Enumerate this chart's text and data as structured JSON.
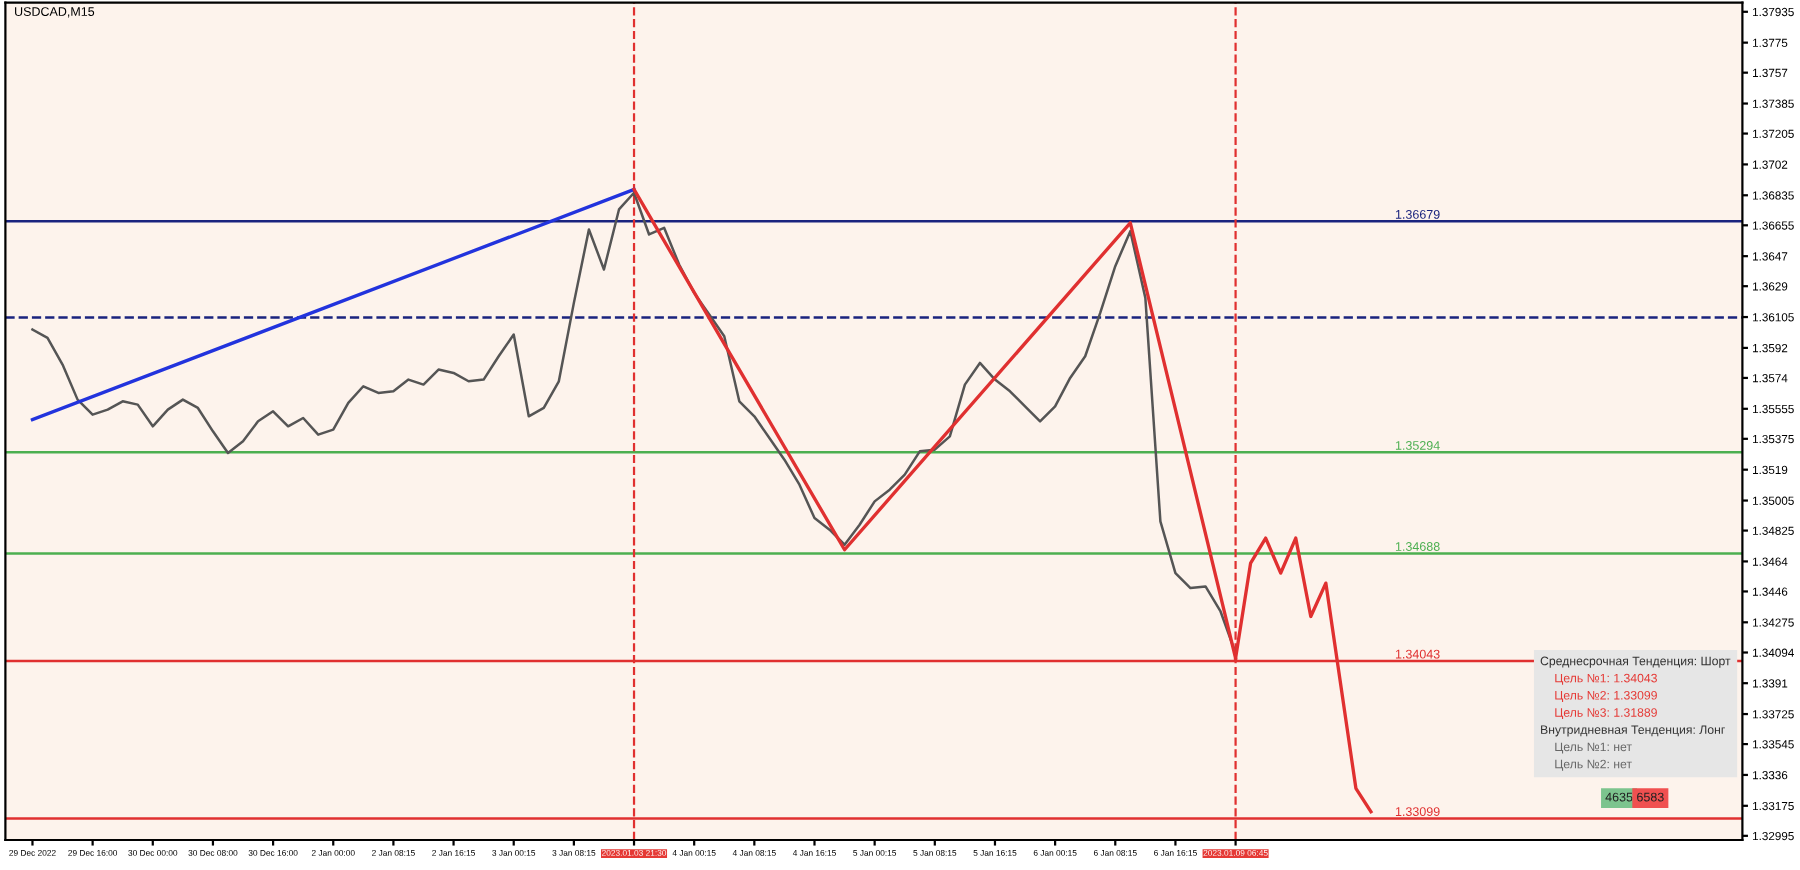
{
  "chart_data": {
    "type": "line",
    "title": "USDCAD,M15",
    "categories": [
      "29 Dec 2022",
      null,
      null,
      null,
      "29 Dec 16:00",
      null,
      null,
      null,
      "30 Dec 00:00",
      null,
      null,
      null,
      "30 Dec 08:00",
      null,
      null,
      null,
      "30 Dec 16:00",
      null,
      null,
      null,
      "2 Jan 00:00",
      null,
      null,
      null,
      "2 Jan 08:15",
      null,
      null,
      null,
      "2 Jan 16:15",
      null,
      null,
      null,
      "3 Jan 00:15",
      null,
      null,
      null,
      "3 Jan 08:15",
      null,
      null,
      null,
      "2023.01.03 21:30",
      null,
      null,
      null,
      "4 Jan 00:15",
      null,
      null,
      null,
      "4 Jan 08:15",
      null,
      null,
      null,
      "4 Jan 16:15",
      null,
      null,
      null,
      "5 Jan 00:15",
      null,
      null,
      null,
      "5 Jan 08:15",
      null,
      null,
      null,
      "5 Jan 16:15",
      null,
      null,
      null,
      "6 Jan 00:15",
      null,
      null,
      null,
      "6 Jan 08:15",
      null,
      null,
      null,
      "6 Jan 16:15",
      null,
      null,
      null,
      "2023.01.09 06:45",
      null,
      null,
      null,
      null,
      null,
      null,
      null,
      null,
      null,
      null,
      null,
      null,
      null,
      null,
      null,
      null,
      null,
      null,
      null,
      null,
      null,
      null,
      null,
      null,
      null,
      null,
      null,
      null,
      null,
      null,
      null,
      null,
      null
    ],
    "series": [
      {
        "color": "#555555",
        "values": [
          1.3603,
          1.3598,
          1.3582,
          1.3561,
          1.3552,
          1.3555,
          1.356,
          1.3558,
          1.3545,
          1.3555,
          1.3561,
          1.3556,
          1.3542,
          1.3529,
          1.3536,
          1.3548,
          1.3554,
          1.3545,
          1.355,
          1.354,
          1.3543,
          1.3559,
          1.3569,
          1.3565,
          1.3566,
          1.3573,
          1.357,
          1.3579,
          1.3577,
          1.3572,
          1.3573,
          1.3587,
          1.36,
          1.3551,
          1.3556,
          1.3572,
          1.3619,
          1.3663,
          1.3639,
          1.3675,
          1.3685,
          1.366,
          1.3664,
          1.3642,
          1.3625,
          1.3612,
          1.3599,
          1.356,
          1.3551,
          1.3538,
          1.3525,
          1.351,
          1.349,
          1.3483,
          1.3474,
          1.3486,
          1.35,
          1.3507,
          1.3516,
          1.353,
          1.3531,
          1.3539,
          1.357,
          1.3583,
          1.3573,
          1.3566,
          1.3557,
          1.3548,
          1.3557,
          1.3574,
          1.3587,
          1.3613,
          1.3641,
          1.3662,
          1.3622,
          1.3488,
          1.3457,
          1.3448,
          1.3449,
          1.3434,
          1.3409,
          null,
          null,
          null,
          null,
          null,
          null,
          null,
          null,
          null,
          null,
          null,
          null,
          null,
          null,
          null,
          null,
          null,
          null,
          null,
          null,
          null,
          null,
          null,
          null,
          null,
          null,
          null,
          null,
          null,
          null,
          null,
          null,
          null
        ]
      },
      {
        "color": "#2233dd",
        "values": [
          1.3549,
          null,
          null,
          null,
          null,
          null,
          null,
          null,
          null,
          null,
          null,
          null,
          null,
          null,
          null,
          null,
          null,
          null,
          null,
          null,
          null,
          null,
          null,
          null,
          null,
          null,
          null,
          null,
          null,
          null,
          null,
          null,
          null,
          null,
          null,
          null,
          null,
          null,
          null,
          null,
          1.3687,
          null,
          null,
          null,
          null,
          null,
          null,
          null,
          null,
          null,
          null,
          null,
          null,
          null,
          null,
          null,
          null,
          null,
          null,
          null,
          null,
          null,
          null,
          null,
          null,
          null,
          null,
          null,
          null,
          null,
          null,
          null,
          null,
          null,
          null,
          null,
          null,
          null,
          null,
          null,
          null,
          null,
          null,
          null,
          null,
          null,
          null,
          null,
          null,
          null,
          null,
          null,
          null,
          null,
          null,
          null,
          null,
          null,
          null,
          null,
          null,
          null,
          null,
          null,
          null,
          null,
          null,
          null,
          null,
          null,
          null,
          null,
          null,
          null
        ]
      },
      {
        "color": "#e03030",
        "values": [
          null,
          null,
          null,
          null,
          null,
          null,
          null,
          null,
          null,
          null,
          null,
          null,
          null,
          null,
          null,
          null,
          null,
          null,
          null,
          null,
          null,
          null,
          null,
          null,
          null,
          null,
          null,
          null,
          null,
          null,
          null,
          null,
          null,
          null,
          null,
          null,
          null,
          null,
          null,
          null,
          1.3687,
          null,
          null,
          null,
          null,
          null,
          null,
          null,
          null,
          null,
          null,
          null,
          null,
          null,
          1.3471,
          null,
          null,
          null,
          null,
          null,
          null,
          null,
          null,
          null,
          null,
          null,
          null,
          null,
          null,
          null,
          null,
          null,
          null,
          1.3667,
          null,
          null,
          null,
          null,
          null,
          null,
          1.3406,
          null,
          null,
          null,
          null,
          null,
          null,
          null,
          null,
          null,
          null,
          null,
          null,
          null,
          null,
          null,
          null,
          null,
          null,
          null,
          null,
          null,
          null,
          null,
          null,
          null,
          null,
          null,
          null,
          null,
          null,
          null,
          null,
          null
        ]
      },
      {
        "color": "#e03030",
        "values": [
          null,
          null,
          null,
          null,
          null,
          null,
          null,
          null,
          null,
          null,
          null,
          null,
          null,
          null,
          null,
          null,
          null,
          null,
          null,
          null,
          null,
          null,
          null,
          null,
          null,
          null,
          null,
          null,
          null,
          null,
          null,
          null,
          null,
          null,
          null,
          null,
          null,
          null,
          null,
          null,
          null,
          null,
          null,
          null,
          null,
          null,
          null,
          null,
          null,
          null,
          null,
          null,
          null,
          null,
          null,
          null,
          null,
          null,
          null,
          null,
          null,
          null,
          null,
          null,
          null,
          null,
          null,
          null,
          null,
          null,
          null,
          null,
          null,
          null,
          null,
          null,
          null,
          null,
          null,
          null,
          1.3406,
          1.3463,
          1.3478,
          1.3457,
          1.3478,
          1.3431,
          1.3451,
          null,
          1.3328,
          1.3314,
          null,
          null,
          null,
          null,
          null,
          null,
          null,
          null,
          null,
          null,
          null,
          null,
          null,
          null,
          null,
          null,
          null,
          null,
          null,
          null,
          null,
          null,
          null,
          null
        ]
      }
    ],
    "ylim": [
      1.3297,
      1.3799
    ],
    "yticks": [
      1.37935,
      1.3775,
      1.3757,
      1.37385,
      1.37205,
      1.3702,
      1.36835,
      1.36655,
      1.3647,
      1.3629,
      1.36105,
      1.3592,
      1.3574,
      1.35555,
      1.35375,
      1.3519,
      1.35005,
      1.34825,
      1.3464,
      1.3446,
      1.34275,
      1.34094,
      1.3391,
      1.33725,
      1.33545,
      1.3336,
      1.33175,
      1.32995
    ],
    "ref_lines": [
      {
        "axis": "y",
        "value": 1.36679,
        "label": "1.36679",
        "color": "#1a237e",
        "line_style": "solid"
      },
      {
        "axis": "y",
        "value": 1.36103,
        "label": null,
        "color": "#1a237e",
        "line_style": "dashed"
      },
      {
        "axis": "y",
        "value": 1.35294,
        "label": "1.35294",
        "color": "#4caf50",
        "line_style": "solid"
      },
      {
        "axis": "y",
        "value": 1.34688,
        "label": "1.34688",
        "color": "#4caf50",
        "line_style": "solid"
      },
      {
        "axis": "y",
        "value": 1.34043,
        "label": "1.34043",
        "color": "#e03030",
        "line_style": "solid"
      },
      {
        "axis": "y",
        "value": 1.33099,
        "label": "1.33099",
        "color": "#e03030",
        "line_style": "solid"
      },
      {
        "axis": "x",
        "value": "2023.01.03 21:30",
        "label": null,
        "color": "#e03030",
        "line_style": "dashed"
      },
      {
        "axis": "x",
        "value": "2023.01.09 06:45",
        "label": null,
        "color": "#e03030",
        "line_style": "dashed"
      }
    ],
    "annotations": [
      "Среднесрочная Тенденция: Шорт",
      "Цель №1: 1.34043",
      "Цель №2: 1.33099",
      "Цель №3: 1.31889",
      "Внутридневная Тенденция: Лонг",
      "Цель №1: нет",
      "Цель №2: нет",
      "4635",
      "6583"
    ],
    "legend": false,
    "marker": "none",
    "line_style": "solid"
  }
}
